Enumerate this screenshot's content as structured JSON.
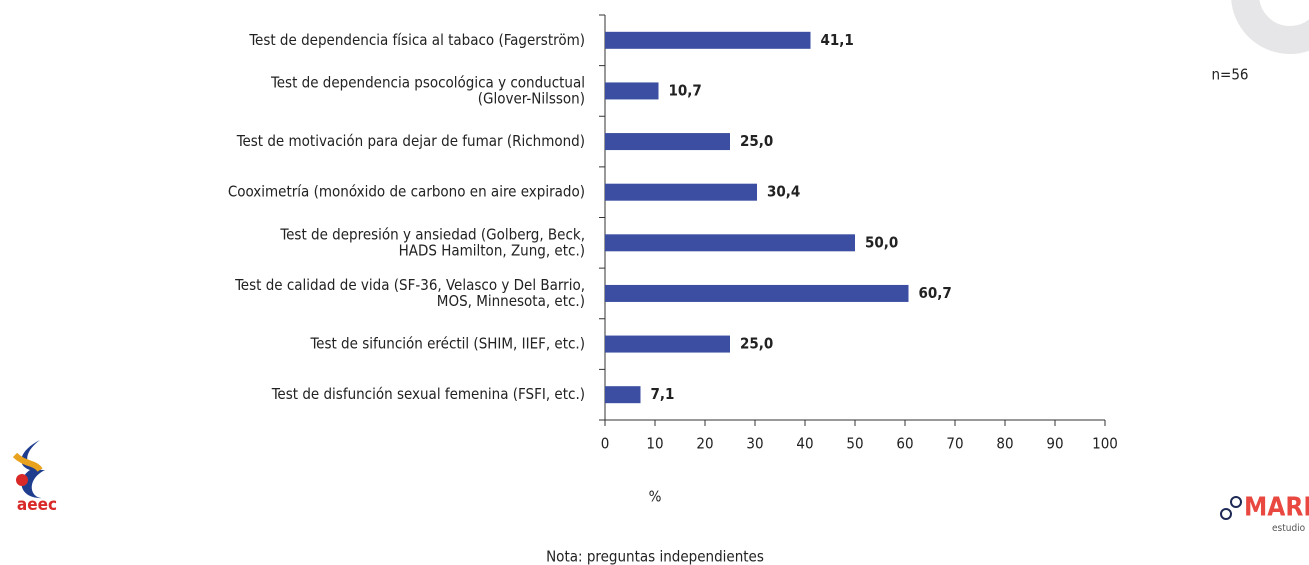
{
  "chart_data": {
    "type": "bar",
    "orientation": "horizontal",
    "categories": [
      [
        "Test de dependencia física al tabaco (Fagerström)"
      ],
      [
        "Test de dependencia psocológica y conductual",
        "(Glover-Nilsson)"
      ],
      [
        "Test de motivación para dejar de fumar (Richmond)"
      ],
      [
        "Cooximetría (monóxido de carbono en aire expirado)"
      ],
      [
        "Test de depresión y ansiedad (Golberg, Beck,",
        "HADS Hamilton, Zung, etc.)"
      ],
      [
        "Test de calidad de vida (SF-36, Velasco y Del Barrio,",
        "MOS, Minnesota, etc.)"
      ],
      [
        "Test de sifunción eréctil (SHIM, IIEF, etc.)"
      ],
      [
        "Test de disfunción sexual femenina (FSFI, etc.)"
      ]
    ],
    "values": [
      41.1,
      10.7,
      25.0,
      30.4,
      50.0,
      60.7,
      25.0,
      7.1
    ],
    "value_labels": [
      "41,1",
      "10,7",
      "25,0",
      "30,4",
      "50,0",
      "60,7",
      "25,0",
      "7,1"
    ],
    "color": "#3b4ea1",
    "xlim": [
      0,
      100
    ],
    "xticks": [
      0,
      10,
      20,
      30,
      40,
      50,
      60,
      70,
      80,
      90,
      100
    ],
    "xlabel": "%",
    "annotation": "n=56",
    "note": "Nota: preguntas independientes"
  },
  "logos": {
    "left": "aeec",
    "right": "MAREC",
    "right_sub": "estudio"
  }
}
